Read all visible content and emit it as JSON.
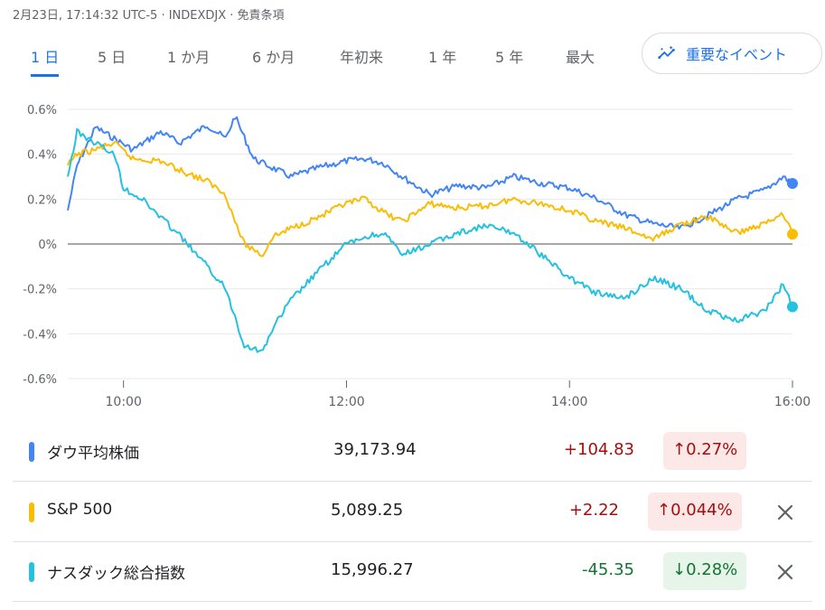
{
  "header": {
    "text": "2月23日, 17:14:32 UTC-5 · INDEXDJX · 免責条項"
  },
  "tabs": [
    "1 日",
    "5 日",
    "1 か月",
    "6 か月",
    "年初来",
    "1 年",
    "5 年",
    "最大"
  ],
  "active_tab": 0,
  "event_button": {
    "label": "重要なイベント",
    "icon": "insights-icon"
  },
  "colors": {
    "dow": "#4285f4",
    "sp500": "#fbbc04",
    "nasdaq": "#24c1e0",
    "zero_line": "#757575",
    "grid": "#e8eaed"
  },
  "chart_data": {
    "type": "line",
    "xlabel": "",
    "ylabel": "",
    "x_ticks": [
      "10:00",
      "12:00",
      "14:00",
      "16:00"
    ],
    "y_ticks": [
      "0.6%",
      "0.4%",
      "0.2%",
      "0%",
      "-0.2%",
      "-0.4%",
      "-0.6%"
    ],
    "ylim": [
      -0.6,
      0.6
    ],
    "xlim": [
      "9:30",
      "16:00"
    ],
    "grid": true,
    "series": [
      {
        "name": "ダウ平均株価",
        "color": "#4285f4",
        "x": [
          "9:30",
          "9:35",
          "9:45",
          "9:55",
          "10:05",
          "10:20",
          "10:30",
          "10:45",
          "10:55",
          "11:00",
          "11:10",
          "11:20",
          "11:30",
          "11:45",
          "12:00",
          "12:10",
          "12:20",
          "12:30",
          "12:45",
          "13:00",
          "13:15",
          "13:30",
          "13:45",
          "14:00",
          "14:15",
          "14:30",
          "14:45",
          "15:00",
          "15:15",
          "15:30",
          "15:45",
          "15:55",
          "16:00"
        ],
        "y": [
          0.15,
          0.35,
          0.52,
          0.47,
          0.42,
          0.5,
          0.45,
          0.53,
          0.47,
          0.57,
          0.38,
          0.34,
          0.3,
          0.34,
          0.37,
          0.38,
          0.36,
          0.3,
          0.22,
          0.26,
          0.25,
          0.3,
          0.27,
          0.25,
          0.2,
          0.13,
          0.09,
          0.07,
          0.13,
          0.2,
          0.24,
          0.3,
          0.27
        ]
      },
      {
        "name": "S&P 500",
        "color": "#fbbc04",
        "x": [
          "9:30",
          "9:35",
          "9:45",
          "9:55",
          "10:05",
          "10:20",
          "10:30",
          "10:45",
          "10:55",
          "11:00",
          "11:05",
          "11:15",
          "11:20",
          "11:30",
          "11:45",
          "12:00",
          "12:10",
          "12:20",
          "12:30",
          "12:45",
          "13:00",
          "13:15",
          "13:30",
          "13:45",
          "14:00",
          "14:15",
          "14:30",
          "14:45",
          "15:00",
          "15:15",
          "15:30",
          "15:45",
          "15:55",
          "16:00"
        ],
        "y": [
          0.35,
          0.4,
          0.42,
          0.45,
          0.38,
          0.37,
          0.33,
          0.28,
          0.22,
          0.1,
          0.0,
          -0.05,
          0.03,
          0.07,
          0.12,
          0.18,
          0.2,
          0.14,
          0.1,
          0.18,
          0.16,
          0.17,
          0.2,
          0.18,
          0.15,
          0.1,
          0.07,
          0.02,
          0.09,
          0.12,
          0.05,
          0.09,
          0.14,
          0.044
        ]
      },
      {
        "name": "ナスダック総合指数",
        "color": "#24c1e0",
        "x": [
          "9:30",
          "9:35",
          "9:45",
          "9:55",
          "10:00",
          "10:10",
          "10:20",
          "10:30",
          "10:45",
          "10:55",
          "11:05",
          "11:15",
          "11:20",
          "11:30",
          "11:45",
          "12:00",
          "12:10",
          "12:20",
          "12:30",
          "12:45",
          "13:00",
          "13:15",
          "13:30",
          "13:45",
          "14:00",
          "14:15",
          "14:30",
          "14:45",
          "15:00",
          "15:15",
          "15:30",
          "15:45",
          "15:55",
          "16:00"
        ],
        "y": [
          0.3,
          0.5,
          0.45,
          0.4,
          0.25,
          0.2,
          0.12,
          0.04,
          -0.1,
          -0.2,
          -0.45,
          -0.48,
          -0.38,
          -0.25,
          -0.12,
          0.0,
          0.03,
          0.05,
          -0.05,
          0.0,
          0.05,
          0.08,
          0.05,
          -0.05,
          -0.15,
          -0.22,
          -0.24,
          -0.15,
          -0.2,
          -0.3,
          -0.34,
          -0.3,
          -0.18,
          -0.28
        ]
      }
    ]
  },
  "rows": [
    {
      "name": "ダウ平均株価",
      "value": "39,173.94",
      "change": "+104.83",
      "pct": "↑0.27%",
      "dir": "up",
      "color": "#4285f4",
      "closable": false
    },
    {
      "name": "S&P 500",
      "value": "5,089.25",
      "change": "+2.22",
      "pct": "↑0.044%",
      "dir": "up",
      "color": "#fbbc04",
      "closable": true
    },
    {
      "name": "ナスダック総合指数",
      "value": "15,996.27",
      "change": "-45.35",
      "pct": "↓0.28%",
      "dir": "down",
      "color": "#24c1e0",
      "closable": true
    }
  ]
}
